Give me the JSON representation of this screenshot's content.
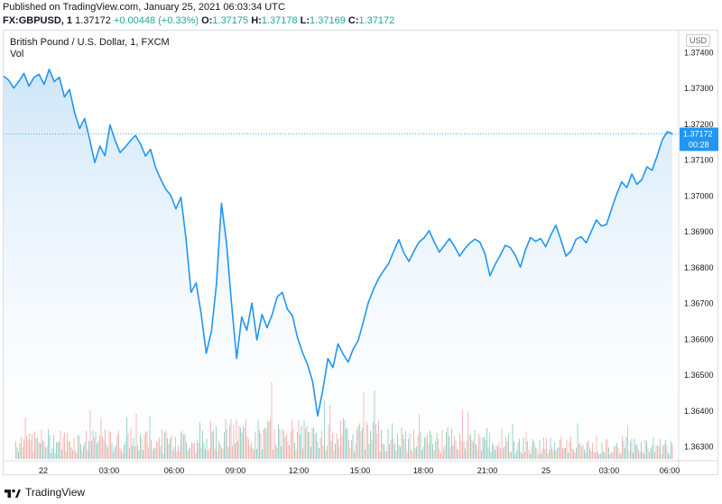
{
  "header": {
    "published": "Published on TradingView.com, January 25, 2021 06:03:34 UTC",
    "symbol": "FX:GBPUSD, 1",
    "last": "1.37172",
    "change": "+0.00448 (+0.33%)",
    "open_label": "O:",
    "open": "1.37175",
    "high_label": "H:",
    "high": "1.37178",
    "low_label": "L:",
    "low": "1.37169",
    "close_label": "C:",
    "close": "1.37172"
  },
  "chart_title": "British Pound / U.S. Dollar, 1, FXCM",
  "vol_label": "Vol",
  "currency_badge": "USD",
  "price_badge": {
    "value": "1.37172",
    "countdown": "00:28"
  },
  "footer": {
    "brand": "TradingView",
    "logo_icon": "tradingview-logo-icon"
  },
  "colors": {
    "line": "#2196f3",
    "area_top": "#c9e3f8",
    "vol_up": "#7fc4b8",
    "vol_down": "#f2a39e",
    "axis_text": "#131722",
    "badge": "#2196f3"
  },
  "chart_data": {
    "type": "area",
    "y_ticks": [
      "1.37400",
      "1.37300",
      "1.37200",
      "1.37100",
      "1.37000",
      "1.36900",
      "1.36800",
      "1.36700",
      "1.36600",
      "1.36500",
      "1.36400",
      "1.36300"
    ],
    "x_ticks": [
      "22",
      "03:00",
      "06:00",
      "09:00",
      "12:00",
      "15:00",
      "18:00",
      "21:00",
      "25",
      "03:00",
      "06:00"
    ],
    "ylim": [
      1.3626,
      1.3746
    ],
    "series": [
      {
        "values": [
          1.37333,
          1.37322,
          1.373,
          1.37318,
          1.37341,
          1.37305,
          1.3733,
          1.37338,
          1.3731,
          1.37352,
          1.37318,
          1.3733,
          1.37275,
          1.37296,
          1.37232,
          1.37187,
          1.37215,
          1.37156,
          1.37092,
          1.37138,
          1.37111,
          1.37197,
          1.37154,
          1.3712,
          1.37135,
          1.37152,
          1.37168,
          1.37144,
          1.3711,
          1.37129,
          1.37078,
          1.37046,
          1.37018,
          1.37,
          1.36963,
          1.36995,
          1.3688,
          1.3673,
          1.36756,
          1.3667,
          1.3656,
          1.3662,
          1.36752,
          1.36978,
          1.36867,
          1.36697,
          1.36545,
          1.36661,
          1.36624,
          1.367,
          1.36597,
          1.36668,
          1.36631,
          1.36667,
          1.36717,
          1.3673,
          1.36683,
          1.36665,
          1.36604,
          1.36562,
          1.36528,
          1.36481,
          1.36385,
          1.36457,
          1.36545,
          1.3652,
          1.36586,
          1.36558,
          1.36535,
          1.36571,
          1.36596,
          1.36648,
          1.36702,
          1.36738,
          1.36768,
          1.3679,
          1.3681,
          1.36845,
          1.36877,
          1.3684,
          1.36816,
          1.36845,
          1.3687,
          1.36882,
          1.36902,
          1.3687,
          1.36842,
          1.36861,
          1.3688,
          1.36858,
          1.36831,
          1.36851,
          1.36867,
          1.36878,
          1.3687,
          1.36838,
          1.36776,
          1.36807,
          1.36832,
          1.36861,
          1.36855,
          1.36833,
          1.368,
          1.36848,
          1.36883,
          1.36872,
          1.3688,
          1.36857,
          1.3689,
          1.36917,
          1.36876,
          1.36831,
          1.36845,
          1.36878,
          1.36885,
          1.36868,
          1.369,
          1.36932,
          1.36915,
          1.36919,
          1.36962,
          1.37004,
          1.37038,
          1.37022,
          1.3706,
          1.37031,
          1.37045,
          1.3708,
          1.3707,
          1.37111,
          1.37155,
          1.37178,
          1.37172
        ]
      }
    ]
  }
}
